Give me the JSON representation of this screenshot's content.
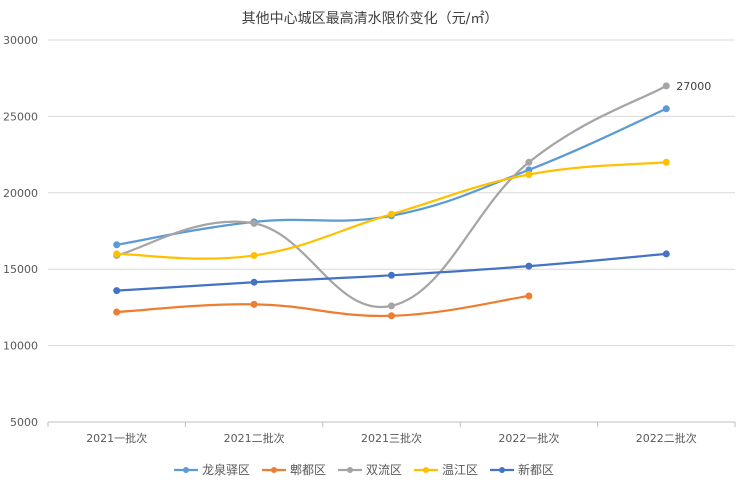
{
  "chart_data": {
    "type": "line",
    "title": "其他中心城区最高清水限价变化（元/㎡）",
    "categories": [
      "2021一批次",
      "2021二批次",
      "2021三批次",
      "2022一批次",
      "2022二批次"
    ],
    "yticks": [
      5000,
      10000,
      15000,
      20000,
      25000,
      30000
    ],
    "ylim": [
      5000,
      30000
    ],
    "grid": "horizontal",
    "legend_position": "bottom",
    "smooth": true,
    "series": [
      {
        "name": "龙泉驿区",
        "color": "#5B9BD5",
        "values": [
          16600,
          18100,
          18500,
          21500,
          25500
        ]
      },
      {
        "name": "郫都区",
        "color": "#ED7D31",
        "values": [
          12200,
          12700,
          11950,
          13250,
          null
        ]
      },
      {
        "name": "双流区",
        "color": "#A5A5A5",
        "values": [
          15900,
          18000,
          12600,
          22000,
          27000
        ]
      },
      {
        "name": "温江区",
        "color": "#FFC000",
        "values": [
          16000,
          15900,
          18600,
          21200,
          22000
        ]
      },
      {
        "name": "新都区",
        "color": "#4472C4",
        "values": [
          13600,
          14150,
          14600,
          15200,
          16000
        ]
      }
    ],
    "annotations": [
      {
        "series": "双流区",
        "category": "2022二批次",
        "text": "27000"
      }
    ]
  }
}
